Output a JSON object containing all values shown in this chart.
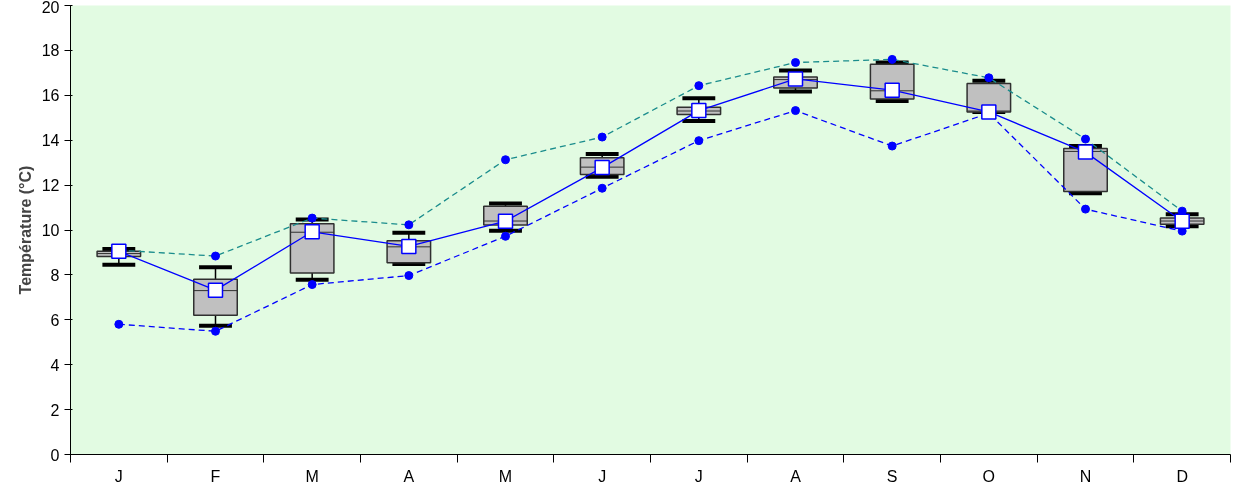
{
  "chart_data": {
    "type": "box",
    "ylabel": "Température (°C)",
    "categories": [
      "J",
      "F",
      "M",
      "A",
      "M",
      "J",
      "J",
      "A",
      "S",
      "O",
      "N",
      "D"
    ],
    "ylim": [
      0,
      20
    ],
    "yticks": [
      0,
      2,
      4,
      6,
      8,
      10,
      12,
      14,
      16,
      18,
      20
    ],
    "grid": false,
    "boxes": [
      {
        "low": 8.45,
        "q1": 8.82,
        "median": 8.95,
        "q3": 9.05,
        "high": 9.15
      },
      {
        "low": 5.74,
        "q1": 6.2,
        "median": 7.3,
        "q3": 7.81,
        "high": 8.34
      },
      {
        "low": 7.78,
        "q1": 8.08,
        "median": 9.9,
        "q3": 10.28,
        "high": 10.47
      },
      {
        "low": 8.48,
        "q1": 8.54,
        "median": 9.25,
        "q3": 9.52,
        "high": 9.88
      },
      {
        "low": 9.97,
        "q1": 10.22,
        "median": 10.4,
        "q3": 11.06,
        "high": 11.18
      },
      {
        "low": 12.37,
        "q1": 12.47,
        "median": 12.8,
        "q3": 13.22,
        "high": 13.38
      },
      {
        "low": 14.85,
        "q1": 15.15,
        "median": 15.3,
        "q3": 15.47,
        "high": 15.87
      },
      {
        "low": 16.17,
        "q1": 16.33,
        "median": 16.7,
        "q3": 16.82,
        "high": 17.1
      },
      {
        "low": 15.75,
        "q1": 15.83,
        "median": 16.2,
        "q3": 17.38,
        "high": 17.46
      },
      {
        "low": 15.26,
        "q1": 15.26,
        "median": 15.3,
        "q3": 16.53,
        "high": 16.65
      },
      {
        "low": 11.64,
        "q1": 11.71,
        "median": 13.5,
        "q3": 13.63,
        "high": 13.74
      },
      {
        "low": 10.17,
        "q1": 10.26,
        "median": 10.4,
        "q3": 10.53,
        "high": 10.7
      }
    ],
    "series": [
      {
        "type": "line",
        "marker": "circle",
        "line_style": "dashed",
        "color": "#1a8c8c",
        "colors": [
          "#0000ff",
          "#0000ff",
          "#0000ff",
          "#0000ff",
          "#0000ff",
          "#0000ff",
          "#0000ff",
          "#0000ff",
          "#0000ff",
          "#0000ff",
          "#0000ff",
          "#0000ff"
        ],
        "values": [
          9.1,
          8.84,
          10.53,
          10.23,
          13.13,
          14.14,
          16.43,
          17.46,
          17.6,
          16.78,
          14.05,
          10.84
        ]
      },
      {
        "type": "line",
        "marker": "circle",
        "line_style": "dashed",
        "color": "#0000ff",
        "values": [
          5.8,
          5.49,
          7.57,
          7.97,
          9.72,
          11.86,
          13.98,
          15.32,
          13.74,
          15.2,
          10.93,
          9.95
        ]
      },
      {
        "type": "line",
        "marker": "square",
        "line_style": "solid",
        "color": "#0000ff",
        "values": [
          9.05,
          7.32,
          9.92,
          9.27,
          10.39,
          12.78,
          15.32,
          16.73,
          16.23,
          15.26,
          13.47,
          10.39
        ]
      }
    ]
  }
}
